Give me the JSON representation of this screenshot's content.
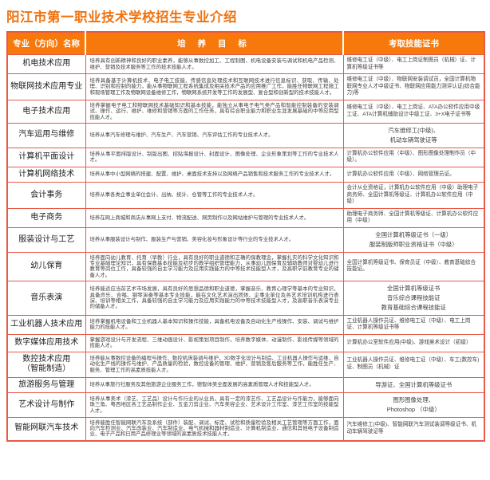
{
  "page": {
    "title": "阳江市第一职业技术学校招生专业介绍"
  },
  "colors": {
    "title_orange": "#f0720e",
    "header_bg_orange": "#f8790b",
    "table_border_red": "#e85948",
    "header_text": "#ffffff"
  },
  "table": {
    "headers": {
      "name": "专业（方向）名称",
      "objective": "培 养 目 标",
      "certificate": "考取技能证书"
    },
    "rows": [
      {
        "name": "机电技术应用",
        "objective": "培养具有创新精神和良好的职业素养，能够从事数控加工、工程制图、机电设备安装与调试和机电产品检测、维护、营销及技术服务等工作的技术技能人才。",
        "certificate": "维修电工证（中级）、电工上岗证制图员（机械）证、计算机等级证书等",
        "cert_align": "left"
      },
      {
        "name": "物联网技术应用专业",
        "objective": "培养具备基于计算机技术、电子电工技能、传感信息处理技术和互联网技术进行信息标识、获取、传输、处理、识别和控制的能力，能从事物联网工程系统集成及相关技术产品的应用推广工作，能胜任物联网工程施工和现场管理工作及物联网设备维修工作，物联网系统开发等工作的发展型、复合型和创新型的技术技能人才。",
        "certificate": "维修电工证（中级）、物联网安装调试员，全国计算机物联网专业人才中级证书、物联网应用能力测评认证(综合能力)等",
        "cert_align": "left"
      },
      {
        "name": "电子技术应用",
        "objective": "培养掌握电子电工和物联网技术基础知识和基本技能，能独立从事电子电气类产品和智能控制装备的安装调试、操作、运行、维护、维修和营销等方面的工作任务，具有综合职业能力和职业生涯发展基础的中等应用型技能人才。",
        "certificate": "维修电工证（中级）、电工上岗证、ATA办公软件应用中级工证、ATA计算机辅助设计中级工证、3+X电子证书等",
        "cert_align": "left"
      },
      {
        "name": "汽车运用与维修",
        "objective": "培养从事汽车修理与维护、汽车生产、汽车营销、汽车评估工作的专业技术人才。",
        "certificate": "汽车维修工(中级)、\n机动车辆驾驶证等",
        "cert_align": "center"
      },
      {
        "name": "计算机平面设计",
        "objective": "培养从事平面排版设计、制版出图、招贴海报设计、封面设计、图像处理、企业形象策划等工作的专业技术人才。",
        "certificate": "计算机办公软件应用（中级）、图形图像处理制作员（中级）。",
        "cert_align": "left"
      },
      {
        "name": "计算机网络技术",
        "objective": "培养从事中小型网络的搭建、配置、维护、桌面技术支持以及网络产品销售和技术服务工作的专业技术人才。",
        "certificate": "计算机办公软件应用（中级）、网络管理员证。",
        "cert_align": "left"
      },
      {
        "name": "会计事务",
        "objective": "培养从事各类企事业单位会计、出纳、统计、仓管等工作的专业技术人才。",
        "certificate": "会计从业资格证，计算机办公软件应用（中级）助理电子商务师、全国计算机等级证、计算机办公软件应用（中级）",
        "cert_align": "left"
      },
      {
        "name": "电子商务",
        "objective": "培养在网上商城和商店从事网上支付、物流配送、网页制作以及网站维护与管理的专业技术人才。",
        "certificate": "助理电子商务师、全国计算机等级证、计算机办公软件应用（中级）",
        "cert_align": "left"
      },
      {
        "name": "服装设计与工艺",
        "objective": "培养从事服装设计与制作、服装生产与营销、美容化妆与形象设计等行业的专业技术人才。",
        "certificate": "全国计算机等级证书（一级）\n服装制版师职业资格证书（中级）",
        "cert_align": "center"
      },
      {
        "name": "幼儿保育",
        "objective": "培养面向幼儿教育、托育（早教）行业，具有良好的职业道德和正确的保教理念，掌握扎实的科学文化知识和专业基础理论知识，具有保教基本技能及初步的教学组织管理能力，从事幼儿园保育及辅助教师对婴幼儿进行教育等岗位工作，具备较强的自主学习能力及应用实践能力的中等技术技能型人才，及高职学前教育专业的储备人才。",
        "certificate": "全国计算机等级证书、保育员证（中级）、教育基础综合技能证。",
        "cert_align": "left"
      },
      {
        "name": "音乐表演",
        "objective": "培养能适应当前艺术市场发展，具有良好的思想品德和职业道德，掌握音乐、教育心理学等基本的专业知识，具备声乐、合唱、钢琴演奏等基本专业技能，能在文化艺术演出团体、企事业单位及各艺术培训机构进行表演、培训等相关工作，具备较强的自主学习能力及应用实践能力的中等技术技能型人才，及高职音乐表演专业的储备人才。",
        "certificate": "全国计算机等级证书\n音乐综合课程技能证\n教育基础综合课程技能证",
        "cert_align": "center"
      },
      {
        "name": "工业机器人技术应用",
        "objective": "培养掌握机电设备和工业机器人基本知识和操作技能，具备机电设备及自动化生产线操作、安装、调试与维护能力的技能人才。",
        "certificate": "工业机器人操作员证、维修电工证（中级）、电工上岗证、计算机等级证书等",
        "cert_align": "left"
      },
      {
        "name": "数字媒体应用技术",
        "objective": "掌握游戏设计与开发流程、三维动画设计、影视策划项目制作，培养数字媒体、动漫制作、影视传媒等领域的技能人才。",
        "certificate": "计算机办公室软件应用(中级)、游戏美术设计（初级）",
        "cert_align": "left"
      },
      {
        "name": "数控技术应用\n（智能制造）",
        "objective": "培养能从事数控设备的编程与操作、数控机床装调与维护，3D数字化设计与制造、工业机器人操作与运维、自动化生产线的操作与维护、产品质量的检验，数控设备的管理、维护、营销及售后服务等工作，能胜任生产、服务、管理工作的高素质技能人才。",
        "certificate": "工业机器人操作员证、维修电工证（中级）、车工(数控车)证、制图员（机械）证",
        "cert_align": "left"
      },
      {
        "name": "旅游服务与管理",
        "objective": "培养从事旅行社服务及其他旅游企业服务工作，德智体美全面发展的高素质管理人才和技能型人才。",
        "certificate": "导游证、全国计算机等级证书",
        "cert_align": "center"
      },
      {
        "name": "艺术设计与制作",
        "objective": "培养从事美术（漆艺、工艺品）设计与作行业的从业员，具有一定的漆艺作、工艺品设计与作能力，能够面向珠三角、粤西地区各工艺品制作企业、五金刀剪企业、汽车美容企业、艺术设计工作室、漆艺工作室的技能型人才。",
        "certificate": "图形图像处理、\nPhotoshop （中级）",
        "cert_align": "center"
      },
      {
        "name": "智能网联汽车技术",
        "objective": "培养能胜任智能网联汽车及系统（部件）装配、调试、标定、试检和质量检验及相关工艺管理等方面工作，面向汽车检测业、汽车改装业、汽车制造业、电气机械和器材制造业、计算机制造业、通信和其他电子设备制造业、电子产品和日用产品修理业等领域的高素质技术技能人才。",
        "certificate": "汽车维修工(中级)、智能网联汽车测试装调等级证书、机动车辆驾驶证等",
        "cert_align": "left"
      }
    ]
  }
}
